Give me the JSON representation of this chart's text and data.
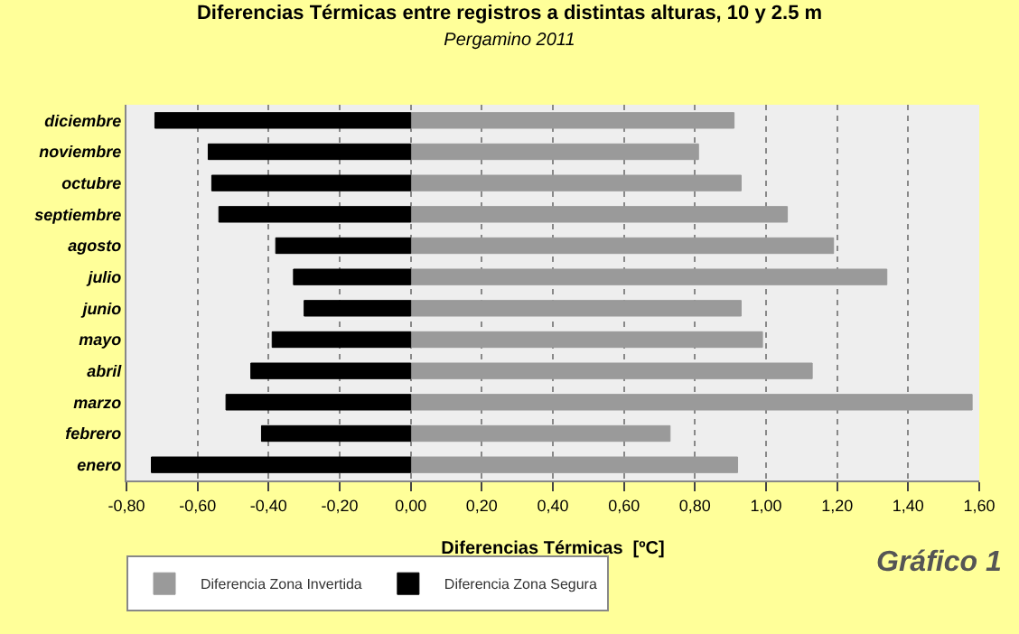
{
  "chart_data": {
    "type": "bar",
    "orientation": "horizontal",
    "stacked": true,
    "title": "Diferencias Térmicas entre registros a distintas alturas, 10 y 2.5 m",
    "subtitle": "Pergamino 2011",
    "xlabel": "Diferencias Térmicas  [ºC]",
    "categories": [
      "diciembre",
      "noviembre",
      "octubre",
      "septiembre",
      "agosto",
      "julio",
      "junio",
      "mayo",
      "abril",
      "marzo",
      "febrero",
      "enero"
    ],
    "series": [
      {
        "name": "Diferencia Zona Invertida",
        "color": "#9a9a9a",
        "values": [
          0.91,
          0.81,
          0.93,
          1.06,
          1.19,
          1.34,
          0.93,
          0.99,
          1.13,
          1.58,
          0.73,
          0.92
        ]
      },
      {
        "name": "Diferencia Zona Segura",
        "color": "#000000",
        "values": [
          -0.72,
          -0.57,
          -0.56,
          -0.54,
          -0.38,
          -0.33,
          -0.3,
          -0.39,
          -0.45,
          -0.52,
          -0.42,
          -0.73
        ]
      }
    ],
    "xlim": [
      -0.8,
      1.6
    ],
    "xticks": [
      {
        "value": -0.8,
        "label": "-0,80"
      },
      {
        "value": -0.6,
        "label": "-0,60"
      },
      {
        "value": -0.4,
        "label": "-0,40"
      },
      {
        "value": -0.2,
        "label": "-0,20"
      },
      {
        "value": 0,
        "label": "0,00"
      },
      {
        "value": 0.2,
        "label": "0,20"
      },
      {
        "value": 0.4,
        "label": "0,40"
      },
      {
        "value": 0.6,
        "label": "0,60"
      },
      {
        "value": 0.8,
        "label": "0,80"
      },
      {
        "value": 1.0,
        "label": "1,00"
      },
      {
        "value": 1.2,
        "label": "1,20"
      },
      {
        "value": 1.4,
        "label": "1,40"
      },
      {
        "value": 1.6,
        "label": "1,60"
      }
    ],
    "grid": "x",
    "legend": "bottom left",
    "annotations": [
      "Gráfico 1"
    ]
  }
}
